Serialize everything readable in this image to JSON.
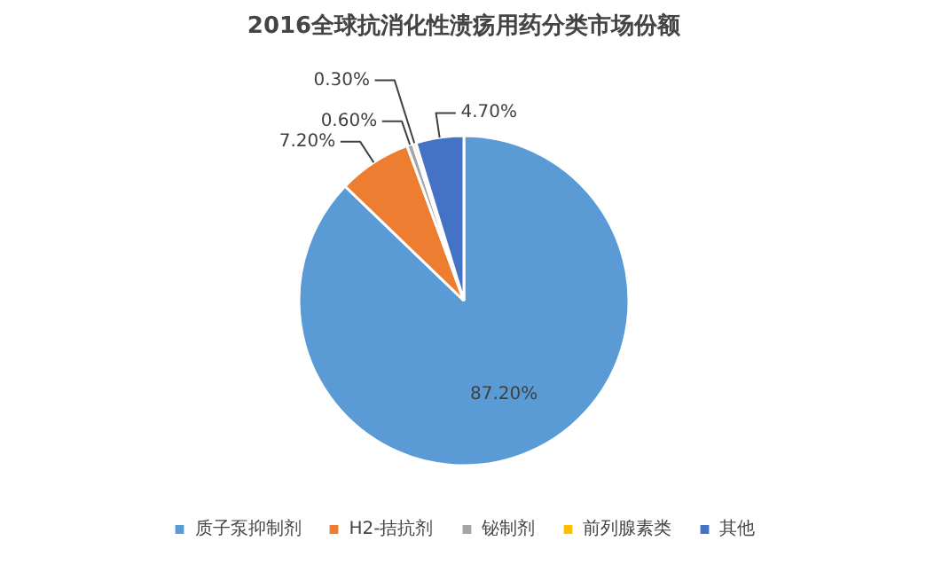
{
  "chart_data": {
    "type": "pie",
    "title": "2016全球抗消化性溃疡用药分类市场份额",
    "categories": [
      "质子泵抑制剂",
      "H2-拮抗剂",
      "铋制剂",
      "前列腺素类",
      "其他"
    ],
    "values": [
      87.2,
      7.2,
      0.6,
      0.3,
      4.7
    ],
    "colors": [
      "#5b9bd5",
      "#ed7d31",
      "#a5a5a5",
      "#ffc000",
      "#4472c4"
    ],
    "value_labels": [
      "87.20%",
      "7.20%",
      "0.60%",
      "0.30%",
      "4.70%"
    ],
    "legend": "bottom"
  }
}
